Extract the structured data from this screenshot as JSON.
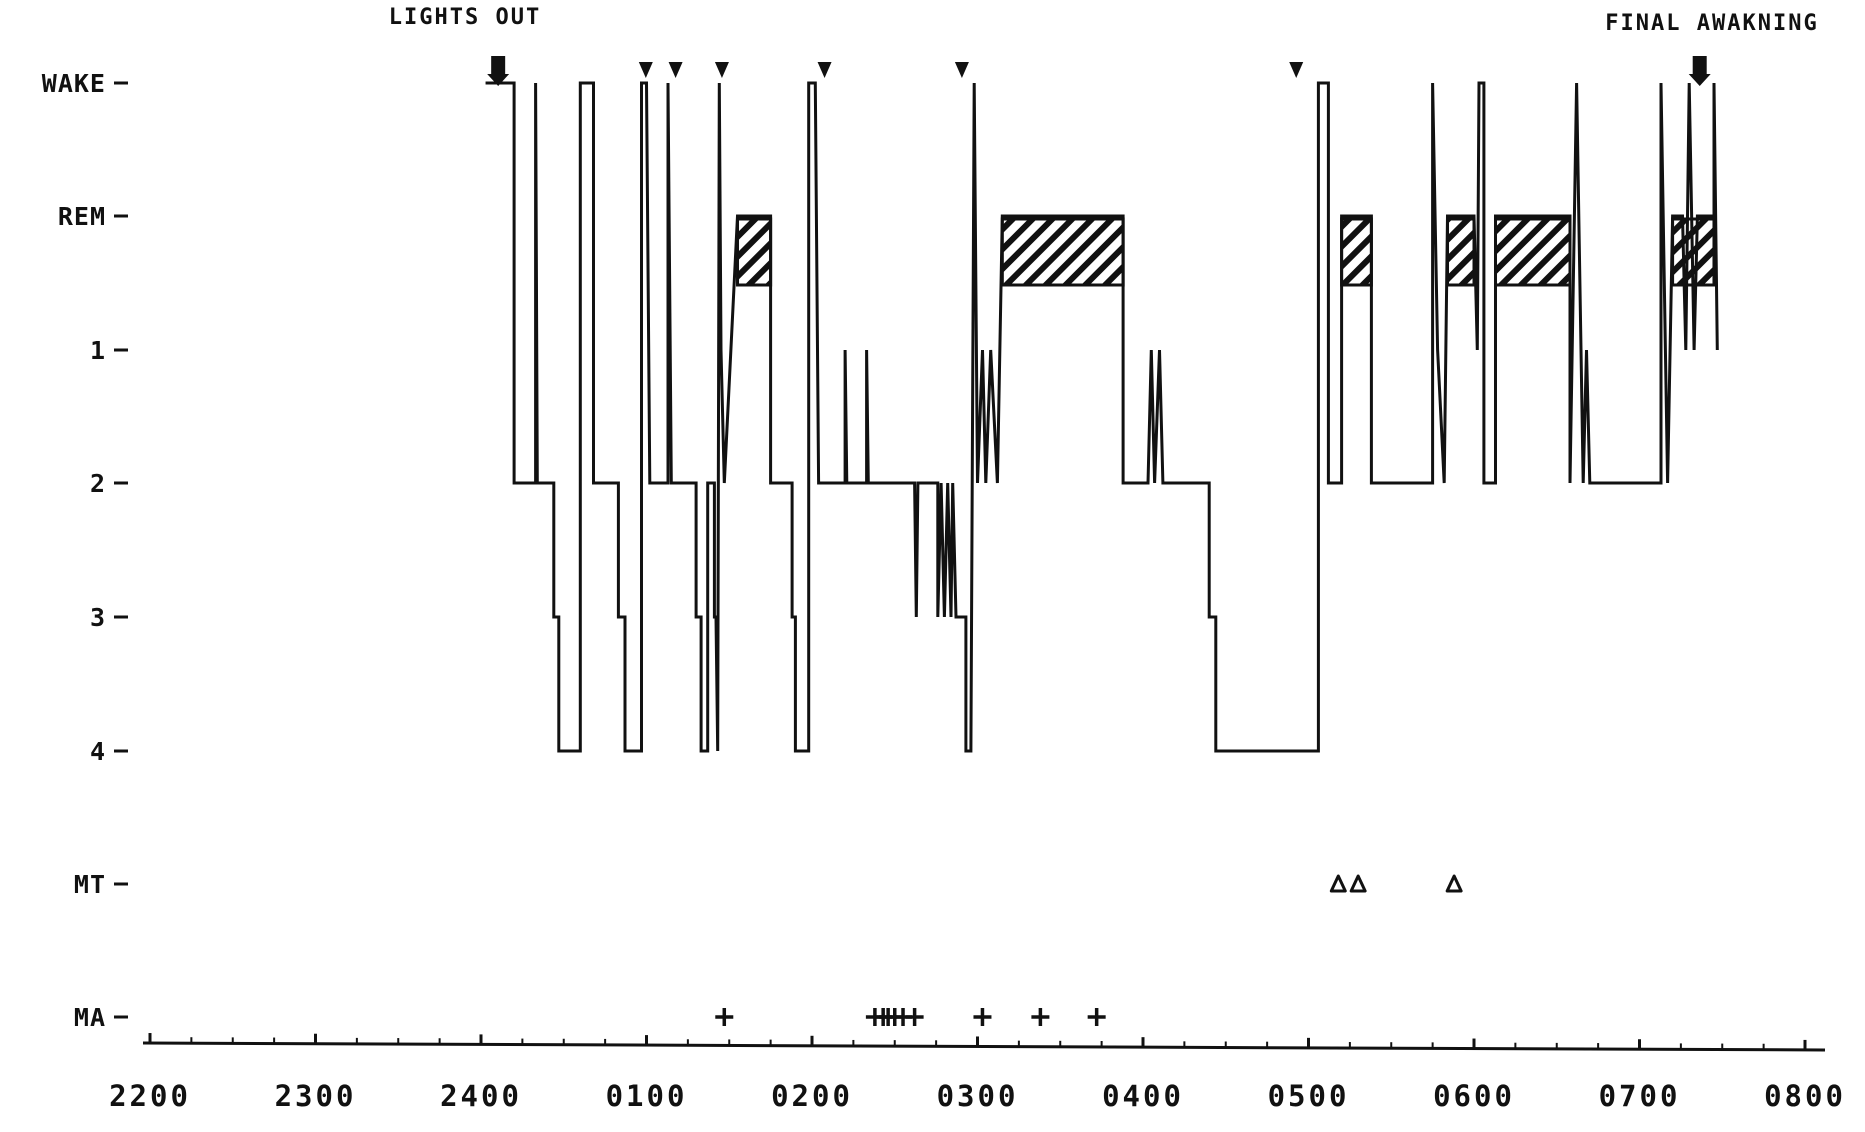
{
  "chart_data": {
    "type": "line",
    "title": "",
    "xlabel": "",
    "ylabel": "",
    "annotations": {
      "lights_out": "LIGHTS OUT",
      "final_awakening": "FINAL AWAKNING"
    },
    "x_ticks": [
      "2200",
      "2300",
      "2400",
      "0100",
      "0200",
      "0300",
      "0400",
      "0500",
      "0600",
      "0700",
      "0800"
    ],
    "y_levels": [
      "WAKE",
      "REM",
      "1",
      "2",
      "3",
      "4",
      "MT",
      "MA"
    ],
    "xlim": [
      0,
      10
    ],
    "grid": false,
    "lights_out_time": 2.1,
    "final_awakening_time": 9.3,
    "series": [
      {
        "values": [
          [
            2.1,
            "WAKE"
          ],
          [
            2.2,
            "WAKE"
          ],
          [
            2.2,
            "1"
          ],
          [
            2.2,
            "2"
          ],
          [
            2.33,
            "2"
          ],
          [
            2.33,
            "WAKE"
          ],
          [
            2.34,
            "2"
          ],
          [
            2.44,
            "2"
          ],
          [
            2.44,
            "3"
          ],
          [
            2.47,
            "3"
          ],
          [
            2.47,
            "4"
          ],
          [
            2.6,
            "4"
          ],
          [
            2.6,
            "WAKE"
          ],
          [
            2.68,
            "WAKE"
          ],
          [
            2.68,
            "2"
          ],
          [
            2.83,
            "2"
          ],
          [
            2.83,
            "3"
          ],
          [
            2.87,
            "3"
          ],
          [
            2.87,
            "4"
          ],
          [
            2.97,
            "4"
          ],
          [
            2.97,
            "WAKE"
          ],
          [
            3.0,
            "WAKE"
          ],
          [
            3.02,
            "2"
          ],
          [
            3.13,
            "2"
          ],
          [
            3.13,
            "WAKE"
          ],
          [
            3.15,
            "2"
          ],
          [
            3.3,
            "2"
          ],
          [
            3.3,
            "3"
          ],
          [
            3.33,
            "3"
          ],
          [
            3.33,
            "4"
          ],
          [
            3.37,
            "4"
          ],
          [
            3.37,
            "2"
          ],
          [
            3.41,
            "2"
          ],
          [
            3.41,
            "3"
          ],
          [
            3.42,
            "3"
          ],
          [
            3.43,
            "4"
          ],
          [
            3.44,
            "WAKE"
          ],
          [
            3.45,
            "1"
          ],
          [
            3.47,
            "2"
          ],
          [
            3.55,
            "REM"
          ],
          [
            3.75,
            "REM"
          ],
          [
            3.75,
            "2"
          ],
          [
            3.88,
            "2"
          ],
          [
            3.88,
            "3"
          ],
          [
            3.9,
            "3"
          ],
          [
            3.9,
            "4"
          ],
          [
            3.98,
            "4"
          ],
          [
            3.98,
            "WAKE"
          ],
          [
            4.02,
            "WAKE"
          ],
          [
            4.04,
            "2"
          ],
          [
            4.2,
            "2"
          ],
          [
            4.2,
            "1"
          ],
          [
            4.21,
            "2"
          ],
          [
            4.33,
            "2"
          ],
          [
            4.33,
            "1"
          ],
          [
            4.34,
            "2"
          ],
          [
            4.62,
            "2"
          ],
          [
            4.63,
            "3"
          ],
          [
            4.64,
            "2"
          ],
          [
            4.76,
            "2"
          ],
          [
            4.76,
            "3"
          ],
          [
            4.78,
            "2"
          ],
          [
            4.8,
            "3"
          ],
          [
            4.82,
            "2"
          ],
          [
            4.84,
            "3"
          ],
          [
            4.85,
            "2"
          ],
          [
            4.87,
            "3"
          ],
          [
            4.93,
            "3"
          ],
          [
            4.93,
            "4"
          ],
          [
            4.96,
            "4"
          ],
          [
            4.98,
            "WAKE"
          ],
          [
            5.0,
            "2"
          ],
          [
            5.03,
            "1"
          ],
          [
            5.05,
            "2"
          ],
          [
            5.08,
            "1"
          ],
          [
            5.12,
            "2"
          ],
          [
            5.15,
            "REM"
          ],
          [
            5.88,
            "REM"
          ],
          [
            5.88,
            "2"
          ],
          [
            6.03,
            "2"
          ],
          [
            6.05,
            "1"
          ],
          [
            6.07,
            "2"
          ],
          [
            6.1,
            "1"
          ],
          [
            6.12,
            "2"
          ],
          [
            6.4,
            "2"
          ],
          [
            6.4,
            "3"
          ],
          [
            6.44,
            "3"
          ],
          [
            6.44,
            "4"
          ],
          [
            7.06,
            "4"
          ],
          [
            7.06,
            "WAKE"
          ],
          [
            7.12,
            "WAKE"
          ],
          [
            7.12,
            "2"
          ],
          [
            7.2,
            "2"
          ],
          [
            7.2,
            "REM"
          ],
          [
            7.38,
            "REM"
          ],
          [
            7.38,
            "2"
          ],
          [
            7.75,
            "2"
          ],
          [
            7.75,
            "WAKE"
          ],
          [
            7.78,
            "1"
          ],
          [
            7.82,
            "2"
          ],
          [
            7.84,
            "REM"
          ],
          [
            8.0,
            "REM"
          ],
          [
            8.02,
            "1"
          ],
          [
            8.03,
            "WAKE"
          ],
          [
            8.06,
            "WAKE"
          ],
          [
            8.06,
            "2"
          ],
          [
            8.13,
            "2"
          ],
          [
            8.13,
            "REM"
          ],
          [
            8.58,
            "REM"
          ],
          [
            8.58,
            "2"
          ],
          [
            8.62,
            "WAKE"
          ],
          [
            8.66,
            "2"
          ],
          [
            8.68,
            "1"
          ],
          [
            8.7,
            "2"
          ],
          [
            9.13,
            "2"
          ],
          [
            9.13,
            "WAKE"
          ],
          [
            9.17,
            "2"
          ],
          [
            9.2,
            "REM"
          ],
          [
            9.26,
            "REM"
          ],
          [
            9.28,
            "1"
          ],
          [
            9.3,
            "WAKE"
          ],
          [
            9.33,
            "1"
          ],
          [
            9.35,
            "REM"
          ],
          [
            9.45,
            "REM"
          ],
          [
            9.45,
            "WAKE"
          ],
          [
            9.47,
            "1"
          ]
        ]
      }
    ],
    "awakening_markers": [
      3.02,
      3.2,
      3.48,
      4.1,
      4.93,
      6.95
    ],
    "rem_periods": [
      [
        3.55,
        3.75
      ],
      [
        5.15,
        5.88
      ],
      [
        7.2,
        7.38
      ],
      [
        7.84,
        8.0
      ],
      [
        8.13,
        8.58
      ],
      [
        9.2,
        9.45
      ]
    ],
    "mt_events": {
      "level": "MT",
      "symbol": "Δ",
      "times": [
        7.18,
        7.3,
        7.88
      ]
    },
    "ma_events": {
      "level": "MA",
      "symbol": "+",
      "times": [
        3.47,
        4.38,
        4.43,
        4.46,
        4.5,
        4.55,
        4.62,
        5.03,
        5.38,
        5.72
      ]
    }
  }
}
